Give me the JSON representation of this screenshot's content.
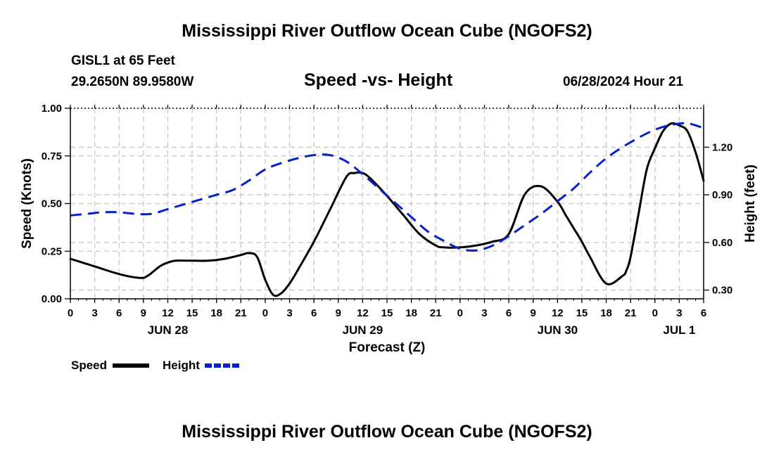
{
  "page": {
    "title": "Mississippi River Outflow Ocean Cube (NGOFS2)",
    "title_repeat": "Mississippi River Outflow Ocean Cube (NGOFS2)",
    "station": "GISL1 at 65 Feet",
    "coordinates": "29.2650N  89.9580W",
    "subtitle": "Speed -vs- Height",
    "datetime": "06/28/2024 Hour 21"
  },
  "colors": {
    "speed": "#000000",
    "height": "#0a1fcc",
    "grid": "#c8c8c8"
  },
  "chart_data": {
    "type": "line",
    "title": "Speed -vs- Height",
    "xlabel": "Forecast (Z)",
    "ylabel": "Speed (Knots)",
    "y2label": "Height (feet)",
    "x_unit": "hours since JUN 28 00Z",
    "xlim": [
      0,
      78
    ],
    "ylim": [
      0,
      1.0
    ],
    "y2lim": [
      0.245,
      1.445
    ],
    "x_ticks": [
      0,
      3,
      6,
      9,
      12,
      15,
      18,
      21,
      24,
      27,
      30,
      33,
      36,
      39,
      42,
      45,
      48,
      51,
      54,
      57,
      60,
      63,
      66,
      69,
      72,
      75,
      78
    ],
    "x_tick_labels": [
      "0",
      "3",
      "6",
      "9",
      "12",
      "15",
      "18",
      "21",
      "0",
      "3",
      "6",
      "9",
      "12",
      "15",
      "18",
      "21",
      "0",
      "3",
      "6",
      "9",
      "12",
      "15",
      "18",
      "21",
      "0",
      "3",
      "6"
    ],
    "date_labels": [
      {
        "label": "JUN 28",
        "x": 12
      },
      {
        "label": "JUN 29",
        "x": 36
      },
      {
        "label": "JUN 30",
        "x": 60
      },
      {
        "label": "JUL 1",
        "x": 75
      }
    ],
    "y_ticks": [
      0,
      0.25,
      0.5,
      0.75,
      1.0
    ],
    "y_tick_labels": [
      "0.00",
      "0.25",
      "0.50",
      "0.75",
      "1.00"
    ],
    "y2_ticks": [
      0.3,
      0.6,
      0.9,
      1.2
    ],
    "y2_tick_labels": [
      "0.30",
      "0.60",
      "0.90",
      "1.20"
    ],
    "grid": true,
    "legend": [
      {
        "name": "Speed",
        "style": "solid"
      },
      {
        "name": "Height",
        "style": "dashed"
      }
    ],
    "legend_position": "bottom-left",
    "series": [
      {
        "name": "Speed",
        "axis": "left",
        "style": "solid",
        "x": [
          0,
          3,
          6,
          8.5,
          9.5,
          11,
          12,
          13,
          15,
          17,
          19,
          21,
          22,
          23,
          24,
          25,
          26,
          27,
          28,
          30,
          32,
          34,
          35,
          36,
          37,
          39,
          41,
          43,
          45,
          46,
          48,
          50,
          52,
          54,
          56,
          58,
          60,
          61,
          62,
          63,
          64,
          66,
          68,
          68.5,
          69,
          70,
          71,
          72,
          73,
          74,
          75,
          76,
          77,
          78
        ],
        "values": [
          0.21,
          0.17,
          0.13,
          0.11,
          0.12,
          0.17,
          0.19,
          0.2,
          0.2,
          0.2,
          0.21,
          0.23,
          0.24,
          0.22,
          0.1,
          0.02,
          0.03,
          0.08,
          0.15,
          0.3,
          0.47,
          0.64,
          0.66,
          0.66,
          0.63,
          0.54,
          0.44,
          0.34,
          0.28,
          0.27,
          0.27,
          0.28,
          0.3,
          0.34,
          0.55,
          0.59,
          0.51,
          0.44,
          0.37,
          0.3,
          0.22,
          0.08,
          0.12,
          0.15,
          0.22,
          0.45,
          0.68,
          0.79,
          0.88,
          0.92,
          0.91,
          0.88,
          0.77,
          0.62
        ]
      },
      {
        "name": "Height",
        "axis": "right",
        "style": "dashed",
        "x": [
          0,
          2,
          4,
          6,
          8,
          10,
          12,
          14,
          16,
          18,
          20,
          22,
          24,
          26,
          28,
          30,
          32,
          34,
          36,
          38,
          40,
          42,
          44,
          46,
          48,
          50,
          52,
          54,
          56,
          58,
          60,
          62,
          64,
          66,
          68,
          70,
          72,
          74,
          76,
          78
        ],
        "values": [
          0.77,
          0.78,
          0.79,
          0.79,
          0.78,
          0.78,
          0.81,
          0.84,
          0.87,
          0.9,
          0.93,
          0.99,
          1.06,
          1.1,
          1.13,
          1.15,
          1.15,
          1.11,
          1.03,
          0.94,
          0.85,
          0.76,
          0.67,
          0.61,
          0.56,
          0.55,
          0.58,
          0.64,
          0.71,
          0.78,
          0.86,
          0.94,
          1.04,
          1.13,
          1.2,
          1.26,
          1.31,
          1.34,
          1.35,
          1.32
        ]
      }
    ]
  }
}
